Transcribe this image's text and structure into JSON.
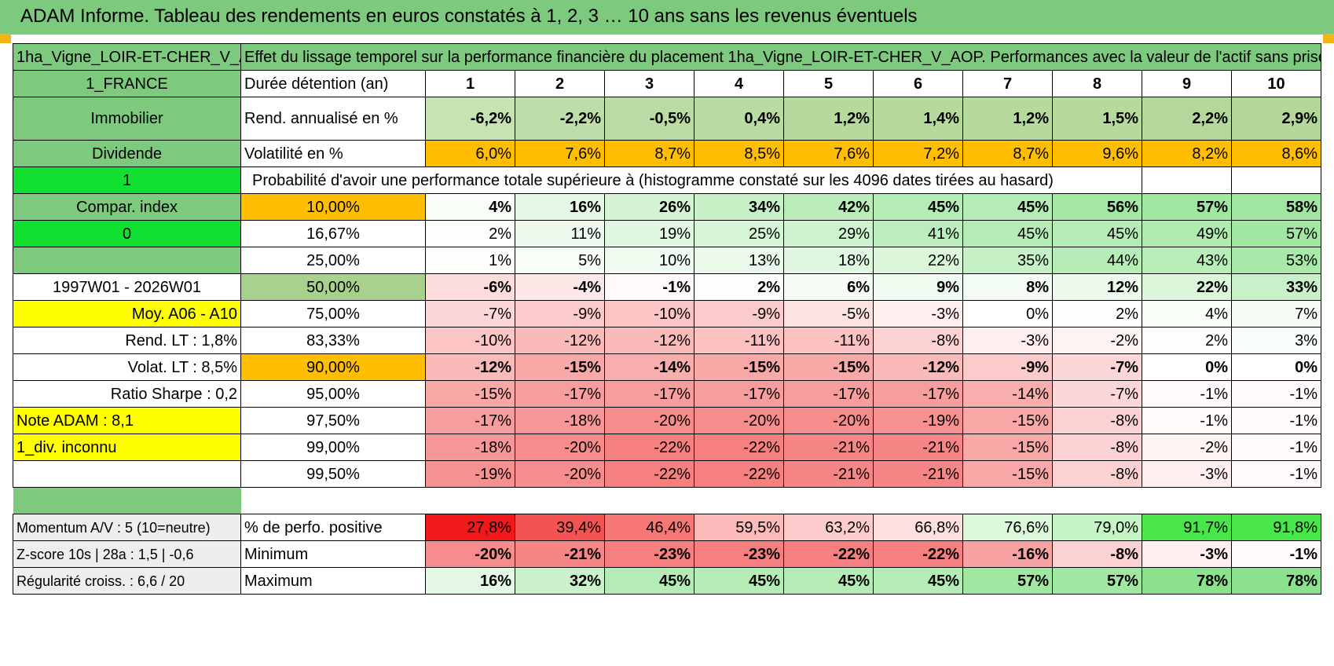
{
  "title": "ADAM Informe. Tableau des rendements en euros constatés à 1, 2, 3 … 10 ans sans les revenus éventuels",
  "asset_name": "1ha_Vigne_LOIR-ET-CHER_V_AOP",
  "description": "Effet du lissage temporel sur la performance financière du placement 1ha_Vigne_LOIR-ET-CHER_V_AOP. Performances avec la valeur de l'actif sans prise en compte des revenus.",
  "left": {
    "country": "1_FRANCE",
    "category": "Immobilier",
    "type": "Dividende",
    "flag1": "1",
    "compar": "Compar. index",
    "flag0": "0",
    "period": "1997W01 - 2026W01",
    "moy": "Moy. A06 - A10",
    "rend_lt": "Rend. LT :   1,8%",
    "volat_lt": "Volat. LT :   8,5%",
    "sharpe": "Ratio Sharpe :    0,2",
    "note": "Note ADAM : 8,1",
    "div": "1_div. inconnu",
    "momentum": "Momentum A/V : 5 (10=neutre)",
    "zscore": "Z-score 10s | 28a : 1,5 | -0,6",
    "regularite": "Régularité croiss. : 6,6 / 20"
  },
  "labels": {
    "duree": "Durée détention (an)",
    "rend": "Rend. annualisé en %",
    "vol": "Volatilité en %",
    "proba": "Probabilité d'avoir une performance totale supérieure à (histogramme constaté sur les 4096 dates tirées au hasard)",
    "pos": "% de perfo. positive",
    "min": "Minimum",
    "max": "Maximum"
  },
  "years": [
    "1",
    "2",
    "3",
    "4",
    "5",
    "6",
    "7",
    "8",
    "9",
    "10"
  ],
  "rend": [
    "-6,2%",
    "-2,2%",
    "-0,5%",
    "0,4%",
    "1,2%",
    "1,4%",
    "1,2%",
    "1,5%",
    "2,2%",
    "2,9%"
  ],
  "vol": [
    "6,0%",
    "7,6%",
    "8,7%",
    "8,5%",
    "7,6%",
    "7,2%",
    "8,7%",
    "9,6%",
    "8,2%",
    "8,6%"
  ],
  "quantiles": [
    {
      "p": "10,00%",
      "v": [
        "4%",
        "16%",
        "26%",
        "34%",
        "42%",
        "45%",
        "45%",
        "56%",
        "57%",
        "58%"
      ]
    },
    {
      "p": "16,67%",
      "v": [
        "2%",
        "11%",
        "19%",
        "25%",
        "29%",
        "41%",
        "45%",
        "45%",
        "49%",
        "57%"
      ]
    },
    {
      "p": "25,00%",
      "v": [
        "1%",
        "5%",
        "10%",
        "13%",
        "18%",
        "22%",
        "35%",
        "44%",
        "43%",
        "53%"
      ]
    },
    {
      "p": "50,00%",
      "v": [
        "-6%",
        "-4%",
        "-1%",
        "2%",
        "6%",
        "9%",
        "8%",
        "12%",
        "22%",
        "33%"
      ]
    },
    {
      "p": "75,00%",
      "v": [
        "-7%",
        "-9%",
        "-10%",
        "-9%",
        "-5%",
        "-3%",
        "0%",
        "2%",
        "4%",
        "7%"
      ]
    },
    {
      "p": "83,33%",
      "v": [
        "-10%",
        "-12%",
        "-12%",
        "-11%",
        "-11%",
        "-8%",
        "-3%",
        "-2%",
        "2%",
        "3%"
      ]
    },
    {
      "p": "90,00%",
      "v": [
        "-12%",
        "-15%",
        "-14%",
        "-15%",
        "-15%",
        "-12%",
        "-9%",
        "-7%",
        "0%",
        "0%"
      ]
    },
    {
      "p": "95,00%",
      "v": [
        "-15%",
        "-17%",
        "-17%",
        "-17%",
        "-17%",
        "-17%",
        "-14%",
        "-7%",
        "-1%",
        "-1%"
      ]
    },
    {
      "p": "97,50%",
      "v": [
        "-17%",
        "-18%",
        "-20%",
        "-20%",
        "-20%",
        "-19%",
        "-15%",
        "-8%",
        "-1%",
        "-1%"
      ]
    },
    {
      "p": "99,00%",
      "v": [
        "-18%",
        "-20%",
        "-22%",
        "-22%",
        "-21%",
        "-21%",
        "-15%",
        "-8%",
        "-2%",
        "-1%"
      ]
    },
    {
      "p": "99,50%",
      "v": [
        "-19%",
        "-20%",
        "-22%",
        "-22%",
        "-21%",
        "-21%",
        "-15%",
        "-8%",
        "-3%",
        "-1%"
      ]
    }
  ],
  "positive": [
    "27,8%",
    "39,4%",
    "46,4%",
    "59,5%",
    "63,2%",
    "66,8%",
    "76,6%",
    "79,0%",
    "91,7%",
    "91,8%"
  ],
  "minimum": [
    "-20%",
    "-21%",
    "-23%",
    "-23%",
    "-22%",
    "-22%",
    "-16%",
    "-8%",
    "-3%",
    "-1%"
  ],
  "maximum": [
    "16%",
    "32%",
    "45%",
    "45%",
    "45%",
    "45%",
    "57%",
    "57%",
    "78%",
    "78%"
  ],
  "colors": {
    "header_green": "#7dc97e",
    "bright_green": "#12e030",
    "yellow": "#ffff00",
    "orange": "#ffbf00",
    "red_text": "#e8101a"
  }
}
